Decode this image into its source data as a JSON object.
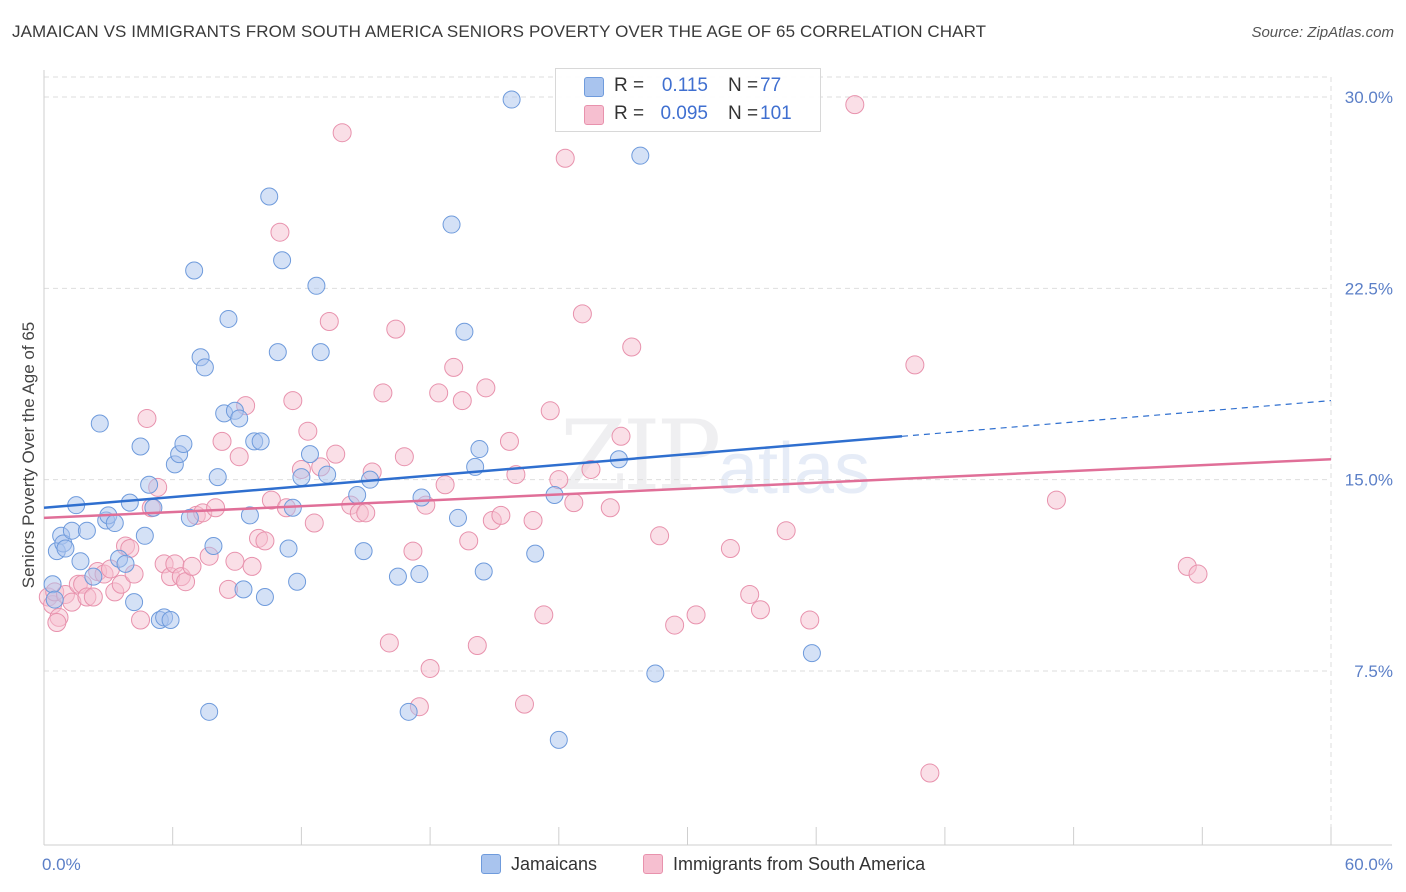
{
  "title": "JAMAICAN VS IMMIGRANTS FROM SOUTH AMERICA SENIORS POVERTY OVER THE AGE OF 65 CORRELATION CHART",
  "source": "Source: ZipAtlas.com",
  "watermark": {
    "zip": "ZIP",
    "atlas": "atlas"
  },
  "colors": {
    "blue_fill": "#a9c4ee",
    "blue_stroke": "#6f9bdc",
    "blue_line": "#2f6fcf",
    "pink_fill": "#f6bfd0",
    "pink_stroke": "#e892ad",
    "pink_line": "#e06f98",
    "tick_text": "#5b7fc7",
    "grid": "#dedede"
  },
  "stats": {
    "row1": {
      "r_label": "R =",
      "r_value": "0.115",
      "n_label": "N =",
      "n_value": "77"
    },
    "row2": {
      "r_label": "R =",
      "r_value": "0.095",
      "n_label": "N =",
      "n_value": "101"
    }
  },
  "legend": {
    "series1": "Jamaicans",
    "series2": "Immigrants from South America"
  },
  "chart_data": {
    "type": "scatter",
    "title": "JAMAICAN VS IMMIGRANTS FROM SOUTH AMERICA SENIORS POVERTY OVER THE AGE OF 65 CORRELATION CHART",
    "xlabel": "",
    "ylabel": "Seniors Poverty Over the Age of 65",
    "xlim": [
      0,
      60
    ],
    "ylim": [
      0,
      31
    ],
    "x_tick_labels": [
      "0.0%",
      "60.0%"
    ],
    "y_ticks": [
      7.5,
      15.0,
      22.5,
      30.0
    ],
    "y_tick_labels": [
      "7.5%",
      "15.0%",
      "22.5%",
      "30.0%"
    ],
    "grid": true,
    "legend_position": "bottom",
    "series": [
      {
        "name": "Jamaicans",
        "trend": {
          "x0": 0,
          "y0": 13.9,
          "x1": 40,
          "y1": 16.7,
          "dashed_to_x": 60,
          "dashed_to_y": 18.1
        },
        "points": [
          [
            0.4,
            10.9
          ],
          [
            0.5,
            10.3
          ],
          [
            0.6,
            12.2
          ],
          [
            0.8,
            12.8
          ],
          [
            0.9,
            12.5
          ],
          [
            1.0,
            12.3
          ],
          [
            1.3,
            13.0
          ],
          [
            1.5,
            14.0
          ],
          [
            1.7,
            11.8
          ],
          [
            2.0,
            13.0
          ],
          [
            2.3,
            11.2
          ],
          [
            2.6,
            17.2
          ],
          [
            2.9,
            13.4
          ],
          [
            3.0,
            13.6
          ],
          [
            3.3,
            13.3
          ],
          [
            3.5,
            11.9
          ],
          [
            3.8,
            11.7
          ],
          [
            4.0,
            14.1
          ],
          [
            4.2,
            10.2
          ],
          [
            4.5,
            16.3
          ],
          [
            4.7,
            12.8
          ],
          [
            4.9,
            14.8
          ],
          [
            5.1,
            13.9
          ],
          [
            5.4,
            9.5
          ],
          [
            5.6,
            9.6
          ],
          [
            5.9,
            9.5
          ],
          [
            6.1,
            15.6
          ],
          [
            6.3,
            16.0
          ],
          [
            6.5,
            16.4
          ],
          [
            6.8,
            13.5
          ],
          [
            7.0,
            23.2
          ],
          [
            7.3,
            19.8
          ],
          [
            7.5,
            19.4
          ],
          [
            7.7,
            5.9
          ],
          [
            7.9,
            12.4
          ],
          [
            8.1,
            15.1
          ],
          [
            8.4,
            17.6
          ],
          [
            8.6,
            21.3
          ],
          [
            8.9,
            17.7
          ],
          [
            9.1,
            17.4
          ],
          [
            9.3,
            10.7
          ],
          [
            9.6,
            13.6
          ],
          [
            9.8,
            16.5
          ],
          [
            10.1,
            16.5
          ],
          [
            10.3,
            10.4
          ],
          [
            10.5,
            26.1
          ],
          [
            10.9,
            20.0
          ],
          [
            11.1,
            23.6
          ],
          [
            11.4,
            12.3
          ],
          [
            11.6,
            13.9
          ],
          [
            11.8,
            11.0
          ],
          [
            12.0,
            15.1
          ],
          [
            12.4,
            16.0
          ],
          [
            12.7,
            22.6
          ],
          [
            12.9,
            20.0
          ],
          [
            13.2,
            15.2
          ],
          [
            14.6,
            14.4
          ],
          [
            14.9,
            12.2
          ],
          [
            15.2,
            15.0
          ],
          [
            16.5,
            11.2
          ],
          [
            17.0,
            5.9
          ],
          [
            17.5,
            11.3
          ],
          [
            17.6,
            14.3
          ],
          [
            19.0,
            25.0
          ],
          [
            19.3,
            13.5
          ],
          [
            19.6,
            20.8
          ],
          [
            20.1,
            15.5
          ],
          [
            20.3,
            16.2
          ],
          [
            20.5,
            11.4
          ],
          [
            21.8,
            29.9
          ],
          [
            22.9,
            12.1
          ],
          [
            23.8,
            14.4
          ],
          [
            24.0,
            4.8
          ],
          [
            26.8,
            15.8
          ],
          [
            27.8,
            27.7
          ],
          [
            28.5,
            7.4
          ],
          [
            35.8,
            8.2
          ]
        ]
      },
      {
        "name": "Immigrants from South America",
        "trend": {
          "x0": 0,
          "y0": 13.5,
          "x1": 60,
          "y1": 15.8
        },
        "points": [
          [
            0.2,
            10.4
          ],
          [
            0.4,
            10.1
          ],
          [
            0.5,
            10.6
          ],
          [
            0.7,
            9.6
          ],
          [
            1.0,
            10.5
          ],
          [
            1.3,
            10.2
          ],
          [
            1.6,
            10.9
          ],
          [
            1.8,
            10.9
          ],
          [
            2.0,
            10.4
          ],
          [
            2.3,
            10.4
          ],
          [
            2.5,
            11.4
          ],
          [
            2.8,
            11.3
          ],
          [
            3.1,
            11.5
          ],
          [
            3.3,
            10.6
          ],
          [
            3.6,
            10.9
          ],
          [
            3.8,
            12.4
          ],
          [
            4.0,
            12.3
          ],
          [
            4.2,
            11.3
          ],
          [
            4.5,
            9.5
          ],
          [
            4.8,
            17.4
          ],
          [
            5.0,
            13.9
          ],
          [
            5.3,
            14.7
          ],
          [
            5.6,
            11.7
          ],
          [
            5.9,
            11.2
          ],
          [
            6.1,
            11.7
          ],
          [
            6.4,
            11.2
          ],
          [
            6.6,
            11.0
          ],
          [
            6.9,
            11.6
          ],
          [
            7.1,
            13.6
          ],
          [
            7.4,
            13.7
          ],
          [
            7.7,
            12.0
          ],
          [
            8.0,
            13.9
          ],
          [
            8.3,
            16.5
          ],
          [
            8.6,
            10.7
          ],
          [
            8.9,
            11.8
          ],
          [
            9.1,
            15.9
          ],
          [
            9.4,
            17.9
          ],
          [
            9.7,
            11.6
          ],
          [
            10.0,
            12.7
          ],
          [
            10.3,
            12.6
          ],
          [
            10.6,
            14.2
          ],
          [
            11.0,
            24.7
          ],
          [
            11.3,
            13.9
          ],
          [
            11.6,
            18.1
          ],
          [
            12.0,
            15.4
          ],
          [
            12.3,
            16.9
          ],
          [
            12.6,
            13.3
          ],
          [
            12.9,
            15.5
          ],
          [
            13.3,
            21.2
          ],
          [
            13.6,
            16.0
          ],
          [
            13.9,
            28.6
          ],
          [
            14.3,
            14.0
          ],
          [
            14.7,
            13.7
          ],
          [
            15.0,
            13.7
          ],
          [
            15.3,
            15.3
          ],
          [
            15.8,
            18.4
          ],
          [
            16.1,
            8.6
          ],
          [
            16.4,
            20.9
          ],
          [
            16.8,
            15.9
          ],
          [
            17.2,
            12.2
          ],
          [
            17.5,
            6.1
          ],
          [
            17.8,
            14.0
          ],
          [
            18.0,
            7.6
          ],
          [
            18.4,
            18.4
          ],
          [
            18.7,
            14.8
          ],
          [
            19.1,
            19.4
          ],
          [
            19.5,
            18.1
          ],
          [
            19.8,
            12.6
          ],
          [
            20.2,
            8.5
          ],
          [
            20.6,
            18.6
          ],
          [
            20.9,
            13.4
          ],
          [
            21.3,
            13.6
          ],
          [
            21.7,
            16.5
          ],
          [
            22.0,
            15.2
          ],
          [
            22.4,
            6.2
          ],
          [
            22.8,
            13.4
          ],
          [
            23.3,
            9.7
          ],
          [
            23.6,
            17.7
          ],
          [
            24.0,
            15.0
          ],
          [
            24.3,
            27.6
          ],
          [
            24.7,
            14.1
          ],
          [
            25.1,
            21.5
          ],
          [
            25.5,
            15.4
          ],
          [
            26.4,
            13.9
          ],
          [
            26.9,
            16.7
          ],
          [
            27.4,
            20.2
          ],
          [
            28.7,
            12.8
          ],
          [
            29.4,
            9.3
          ],
          [
            30.4,
            9.7
          ],
          [
            32.0,
            12.3
          ],
          [
            32.9,
            10.5
          ],
          [
            33.4,
            9.9
          ],
          [
            34.6,
            13.0
          ],
          [
            35.7,
            9.5
          ],
          [
            37.8,
            29.7
          ],
          [
            40.6,
            19.5
          ],
          [
            41.3,
            3.5
          ],
          [
            47.2,
            14.2
          ],
          [
            53.3,
            11.6
          ],
          [
            53.8,
            11.3
          ],
          [
            0.6,
            9.4
          ]
        ]
      }
    ]
  }
}
